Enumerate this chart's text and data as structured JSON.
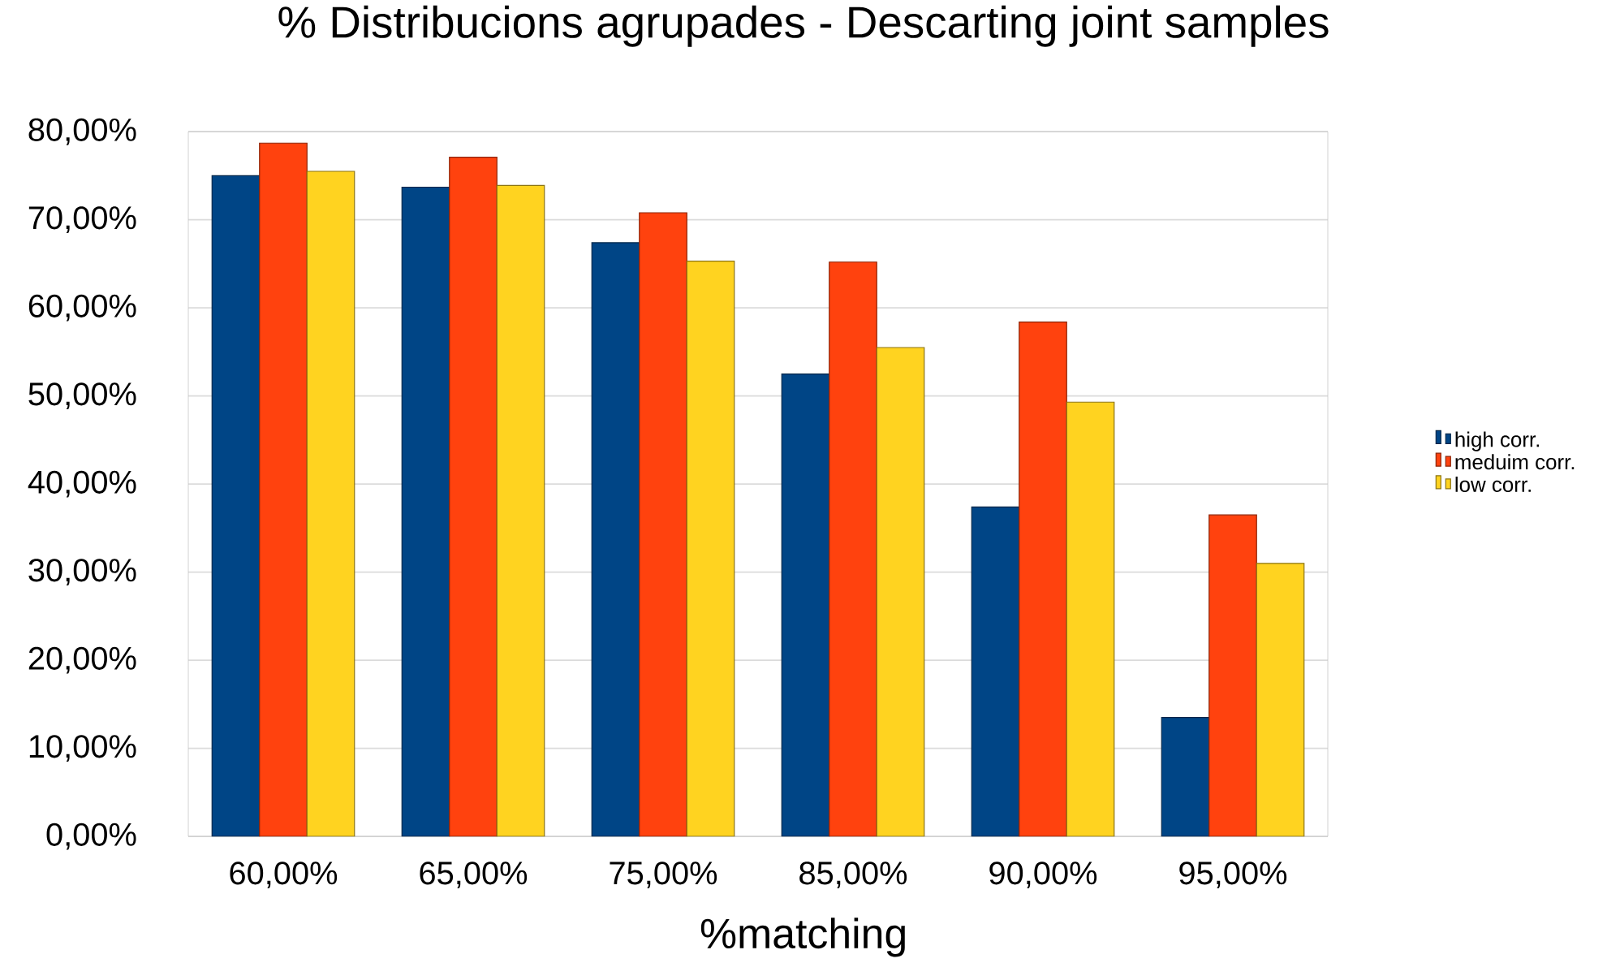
{
  "chart_data": {
    "type": "bar",
    "title": "% Distribucions agrupades - Descarting joint samples",
    "xlabel": "%matching",
    "categories": [
      "60,00%",
      "65,00%",
      "75,00%",
      "85,00%",
      "90,00%",
      "95,00%"
    ],
    "series": [
      {
        "name": "high corr.",
        "color": "#004586",
        "values": [
          75.0,
          73.7,
          67.4,
          52.5,
          37.4,
          13.5
        ]
      },
      {
        "name": "meduim corr.",
        "color": "#ff420e",
        "values": [
          78.7,
          77.1,
          70.8,
          65.2,
          58.4,
          36.5
        ]
      },
      {
        "name": "low corr.",
        "color": "#ffd320",
        "values": [
          75.5,
          73.9,
          65.3,
          55.5,
          49.3,
          31.0
        ]
      }
    ],
    "ylim": [
      0,
      80
    ],
    "yticks": [
      {
        "value": 0,
        "label": "0,00%"
      },
      {
        "value": 10,
        "label": "10,00%"
      },
      {
        "value": 20,
        "label": "20,00%"
      },
      {
        "value": 30,
        "label": "30,00%"
      },
      {
        "value": 40,
        "label": "40,00%"
      },
      {
        "value": 50,
        "label": "50,00%"
      },
      {
        "value": 60,
        "label": "60,00%"
      },
      {
        "value": 70,
        "label": "70,00%"
      },
      {
        "value": 80,
        "label": "80,00%"
      }
    ],
    "grid": "y",
    "legend": "right"
  }
}
